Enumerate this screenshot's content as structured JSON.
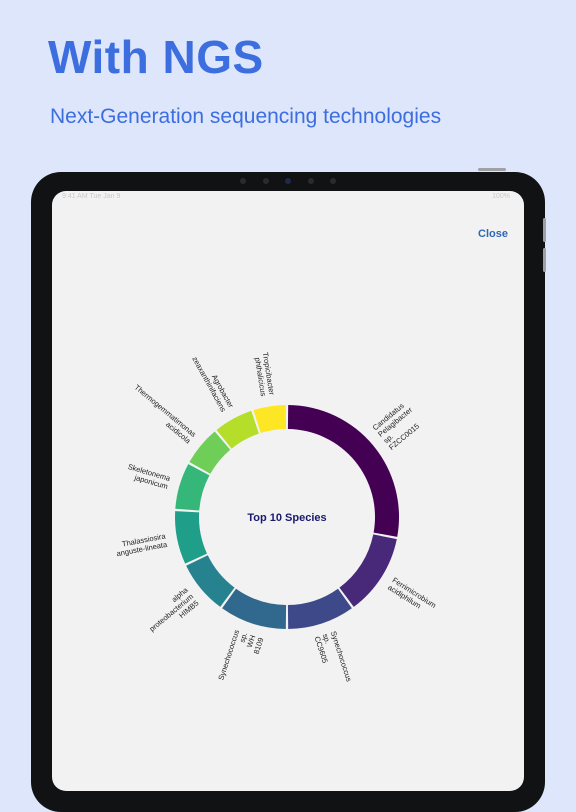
{
  "headline": "With NGS",
  "subtitle": "Next-Generation sequencing technologies",
  "status_bar": {
    "left": "9:41 AM  Tue Jan 9",
    "right": "100%"
  },
  "close_label": "Close",
  "chart_data": {
    "type": "pie",
    "title": "Top 10 Species",
    "categories": [
      [
        "Candidatus",
        "Pelagibacter",
        "sp.",
        "FZCC0015"
      ],
      [
        "Ferrimicrobium",
        "acidiphilum"
      ],
      [
        "Synechococcus",
        "sp.",
        "CC9605"
      ],
      [
        "Synechococcus",
        "sp.",
        "WH",
        "8109"
      ],
      [
        "alpha",
        "proteobacterium",
        "HIMB5"
      ],
      [
        "Thalassiosira",
        "anguste-lineata"
      ],
      [
        "Skeletonema",
        "japonicum"
      ],
      [
        "Thermogemmatimonas",
        "acidicola"
      ],
      [
        "Agrobacter",
        "zeaxanthinifaciens"
      ],
      [
        "Tropicibacter",
        "phthalicicus"
      ]
    ],
    "values": [
      28,
      12,
      10,
      10,
      8,
      8,
      7,
      6,
      6,
      5
    ],
    "colors": [
      "#440154",
      "#482878",
      "#3e4989",
      "#31688e",
      "#26828e",
      "#1f9e89",
      "#35b779",
      "#6ece58",
      "#b5de2b",
      "#fde725"
    ]
  }
}
